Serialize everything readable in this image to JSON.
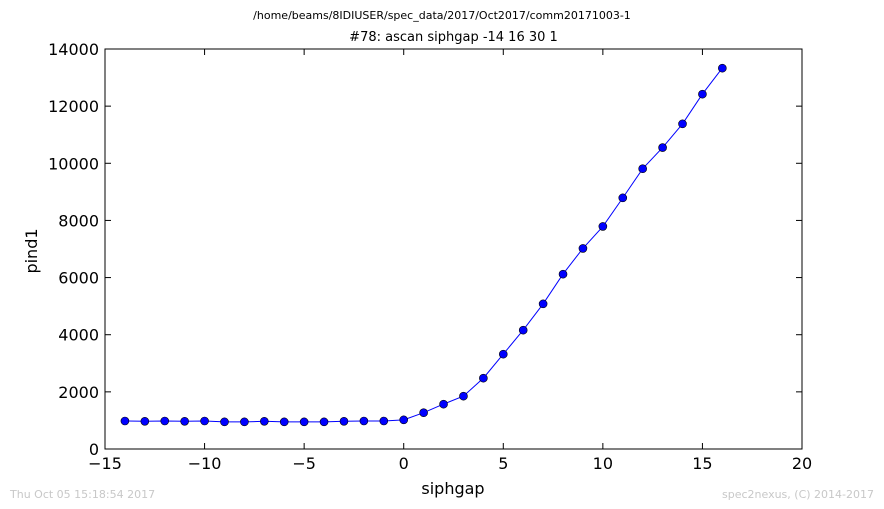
{
  "header": {
    "path": "/home/beams/8IDIUSER/spec_data/2017/Oct2017/comm20171003-1"
  },
  "footer": {
    "timestamp": "Thu Oct 05 15:18:54 2017",
    "credit": "spec2nexus, (C) 2014-2017"
  },
  "chart_data": {
    "type": "line",
    "title": "#78: ascan  siphgap -14 16  30 1",
    "xlabel": "siphgap",
    "ylabel": "pind1",
    "xlim": [
      -15,
      20
    ],
    "ylim": [
      0,
      14000
    ],
    "xticks": [
      -15,
      -10,
      -5,
      0,
      5,
      10,
      15,
      20
    ],
    "xtick_labels": [
      "−15",
      "−10",
      "−5",
      "0",
      "5",
      "10",
      "15",
      "20"
    ],
    "yticks": [
      0,
      2000,
      4000,
      6000,
      8000,
      10000,
      12000,
      14000
    ],
    "ytick_labels": [
      "0",
      "2000",
      "4000",
      "6000",
      "8000",
      "10000",
      "12000",
      "14000"
    ],
    "grid": false,
    "series": [
      {
        "color": "#0000ff",
        "marker": "circle",
        "x": [
          -14,
          -13,
          -12,
          -11,
          -10,
          -9,
          -8,
          -7,
          -6,
          -5,
          -4,
          -3,
          -2,
          -1,
          0,
          1,
          2,
          3,
          4,
          5,
          6,
          7,
          8,
          9,
          10,
          11,
          12,
          13,
          14,
          15,
          16
        ],
        "y": [
          980,
          970,
          980,
          970,
          980,
          950,
          950,
          970,
          950,
          950,
          950,
          970,
          980,
          980,
          1020,
          1270,
          1570,
          1850,
          2480,
          3320,
          4160,
          5080,
          6120,
          7020,
          7790,
          8790,
          9810,
          10550,
          11380,
          12420,
          13330
        ]
      }
    ]
  }
}
